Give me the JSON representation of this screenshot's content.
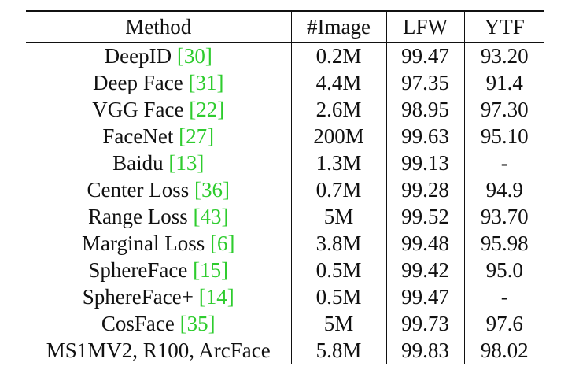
{
  "table": {
    "headers": {
      "method": "Method",
      "images": "#Image",
      "lfw": "LFW",
      "ytf": "YTF"
    },
    "rows": [
      {
        "method": "DeepID",
        "ref": "30",
        "images": "0.2M",
        "lfw": "99.47",
        "ytf": "93.20"
      },
      {
        "method": "Deep Face",
        "ref": "31",
        "images": "4.4M",
        "lfw": "97.35",
        "ytf": "91.4"
      },
      {
        "method": "VGG Face",
        "ref": "22",
        "images": "2.6M",
        "lfw": "98.95",
        "ytf": "97.30"
      },
      {
        "method": "FaceNet",
        "ref": "27",
        "images": "200M",
        "lfw": "99.63",
        "ytf": "95.10"
      },
      {
        "method": "Baidu",
        "ref": "13",
        "images": "1.3M",
        "lfw": "99.13",
        "ytf": "-"
      },
      {
        "method": "Center Loss",
        "ref": "36",
        "images": "0.7M",
        "lfw": "99.28",
        "ytf": "94.9"
      },
      {
        "method": "Range Loss",
        "ref": "43",
        "images": "5M",
        "lfw": "99.52",
        "ytf": "93.70"
      },
      {
        "method": "Marginal Loss",
        "ref": "6",
        "images": "3.8M",
        "lfw": "99.48",
        "ytf": "95.98"
      },
      {
        "method": "SphereFace",
        "ref": "15",
        "images": "0.5M",
        "lfw": "99.42",
        "ytf": "95.0"
      },
      {
        "method": "SphereFace+",
        "ref": "14",
        "images": "0.5M",
        "lfw": "99.47",
        "ytf": "-"
      },
      {
        "method": "CosFace",
        "ref": "35",
        "images": "5M",
        "lfw": "99.73",
        "ytf": "97.6"
      },
      {
        "method": "MS1MV2, R100, ArcFace",
        "ref": "",
        "images": "5.8M",
        "lfw": "99.83",
        "ytf": "98.02",
        "bold_scores": true
      }
    ]
  },
  "colors": {
    "citation": "#2ecc2e",
    "text": "#111111",
    "rules": "#111111"
  }
}
